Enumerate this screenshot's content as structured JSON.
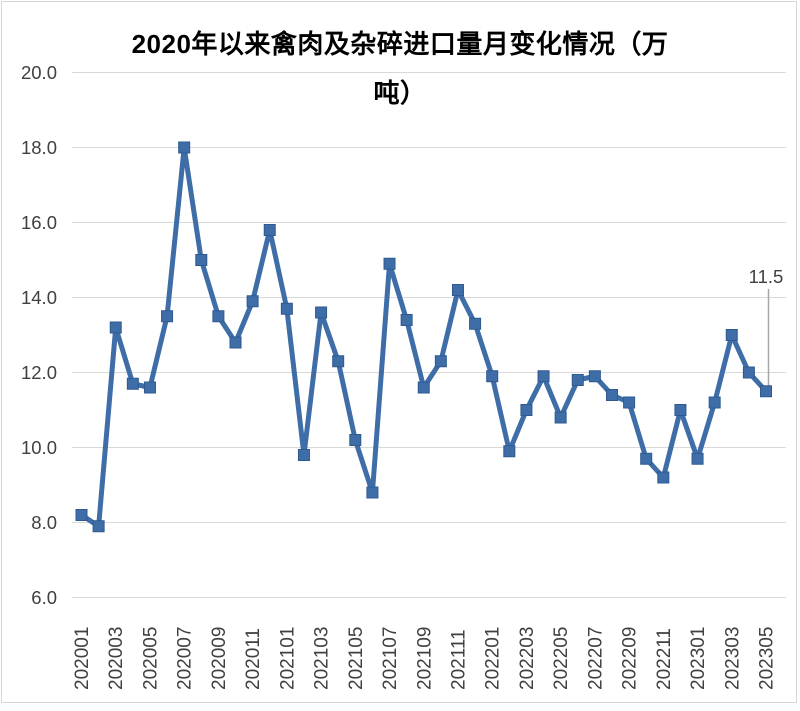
{
  "chart_data": {
    "type": "line",
    "title": "2020年以来禽肉及杂碎进口量月变化情况（万吨）",
    "title_lines": [
      "2020年以来禽肉及杂碎进口量月变化情况（万",
      "吨）"
    ],
    "x": [
      "202001",
      "202002",
      "202003",
      "202004",
      "202005",
      "202006",
      "202007",
      "202008",
      "202009",
      "202010",
      "202011",
      "202012",
      "202101",
      "202102",
      "202103",
      "202104",
      "202105",
      "202106",
      "202107",
      "202108",
      "202109",
      "202110",
      "202111",
      "202112",
      "202201",
      "202202",
      "202203",
      "202204",
      "202205",
      "202206",
      "202207",
      "202208",
      "202209",
      "202210",
      "202211",
      "202212",
      "202301",
      "202302",
      "202303",
      "202304",
      "202305"
    ],
    "values": [
      8.2,
      7.9,
      13.2,
      11.7,
      11.6,
      13.5,
      18.0,
      15.0,
      13.5,
      12.8,
      13.9,
      15.8,
      13.7,
      9.8,
      13.6,
      12.3,
      10.2,
      8.8,
      14.9,
      13.4,
      11.6,
      12.3,
      14.2,
      13.3,
      11.9,
      9.9,
      11.0,
      11.9,
      10.8,
      11.8,
      11.9,
      11.4,
      11.2,
      9.7,
      9.2,
      11.0,
      9.7,
      11.2,
      13.0,
      12.0,
      11.5
    ],
    "x_tick_labels": [
      "202001",
      "202003",
      "202005",
      "202007",
      "202009",
      "202011",
      "202101",
      "202103",
      "202105",
      "202107",
      "202109",
      "202111",
      "202201",
      "202203",
      "202205",
      "202207",
      "202209",
      "202211",
      "202301",
      "202303",
      "202305"
    ],
    "x_tick_every": 2,
    "y_tick_labels": [
      "20.0",
      "18.0",
      "16.0",
      "14.0",
      "12.0",
      "10.0",
      "8.0",
      "6.0"
    ],
    "ylim": [
      6.0,
      20.0
    ],
    "y_tick_step": 2.0,
    "grid": true,
    "legend": false,
    "annotation": {
      "text": "11.5",
      "x": "202305"
    },
    "colors": {
      "series": "#3E6DA8",
      "marker_edge": "#2E5A8F",
      "gridline": "#D9D9D9",
      "axis_text": "#404040",
      "title_text": "#000000",
      "leader_line": "#A6A6A6",
      "frame_border": "#D5D5D5",
      "background": "#FFFFFF"
    }
  }
}
